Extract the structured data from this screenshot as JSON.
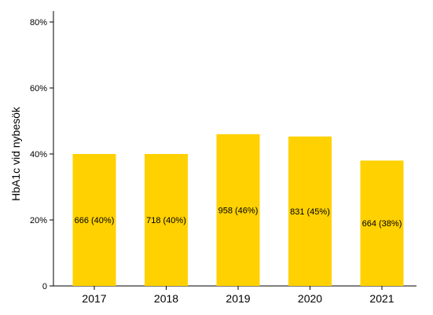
{
  "chart_data": {
    "type": "bar",
    "title": "",
    "xlabel": "",
    "ylabel": "HbA1c vid nybesök",
    "categories": [
      "2017",
      "2018",
      "2019",
      "2020",
      "2021"
    ],
    "values": [
      40,
      40,
      46,
      45.3,
      38
    ],
    "bar_labels": [
      "666 (40%)",
      "718 (40%)",
      "958 (46%)",
      "831 (45%)",
      "664 (38%)"
    ],
    "ylim": [
      0,
      80
    ],
    "yticks": [
      0,
      20,
      40,
      60,
      80
    ],
    "ytick_labels": [
      "0",
      "20%",
      "40%",
      "60%",
      "80%"
    ],
    "grid": false,
    "legend": "none",
    "bar_color": "#FFD100"
  }
}
